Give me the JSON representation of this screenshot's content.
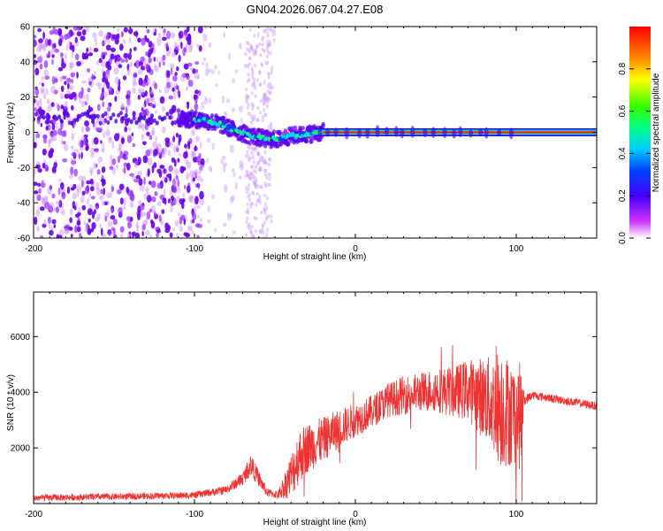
{
  "chart_data": [
    {
      "type": "heatmap",
      "title": "GN04.2026.067.04.27.E08",
      "xlabel": "Height of straight line (km)",
      "ylabel": "Frequency (Hz)",
      "xlim": [
        -200,
        150
      ],
      "ylim": [
        -60,
        60
      ],
      "x_ticks": [
        -200,
        -100,
        0,
        100
      ],
      "y_ticks": [
        -60,
        -40,
        -20,
        0,
        20,
        40,
        60
      ],
      "colorbar": {
        "label": "Normalized spectral amplitude",
        "range": [
          0,
          1
        ],
        "ticks": [
          "0.0",
          "0.2",
          "0.4",
          "0.6",
          "0.8"
        ],
        "colors": [
          "#ffffff",
          "#cc33ff",
          "#3300ff",
          "#00ccff",
          "#00ff66",
          "#66ff00",
          "#ffff00",
          "#ff6600",
          "#ff0000"
        ]
      },
      "ridge": {
        "x": [
          -110,
          -95,
          -85,
          -75,
          -65,
          -55,
          -48,
          -40,
          -30,
          -20,
          0,
          50,
          100,
          150
        ],
        "freq": [
          8,
          7,
          5,
          1,
          -2,
          -4,
          -4,
          -2,
          -1,
          0,
          0,
          0,
          0,
          0
        ]
      },
      "noise_x_range": [
        -200,
        -50
      ]
    },
    {
      "type": "line",
      "xlabel": "Height of straight line (km)",
      "ylabel": "SNR (10 * v/v)",
      "xlim": [
        -200,
        150
      ],
      "ylim": [
        0,
        7600
      ],
      "x_ticks": [
        -200,
        -100,
        0,
        100
      ],
      "y_ticks": [
        2000,
        4000,
        6000
      ],
      "series": [
        {
          "name": "SNR",
          "color": "#ee3333",
          "x": [
            -200,
            -150,
            -100,
            -80,
            -70,
            -65,
            -60,
            -55,
            -48,
            -40,
            -35,
            -30,
            -20,
            -10,
            0,
            10,
            20,
            30,
            40,
            50,
            60,
            70,
            80,
            85,
            90,
            95,
            100,
            103,
            105,
            110,
            120,
            130,
            140,
            150
          ],
          "mean": [
            200,
            250,
            300,
            500,
            900,
            1400,
            900,
            400,
            300,
            1000,
            1700,
            2000,
            2300,
            2700,
            3000,
            3300,
            3700,
            3900,
            4000,
            4100,
            4000,
            4100,
            3800,
            3600,
            3500,
            3300,
            3200,
            3100,
            3700,
            3900,
            3800,
            3700,
            3600,
            3500
          ],
          "spread": [
            120,
            120,
            120,
            150,
            250,
            400,
            300,
            150,
            150,
            800,
            1000,
            900,
            800,
            700,
            600,
            600,
            600,
            700,
            700,
            800,
            900,
            1100,
            1500,
            1700,
            2200,
            2000,
            1800,
            2000,
            200,
            150,
            150,
            150,
            150,
            150
          ]
        }
      ]
    }
  ]
}
